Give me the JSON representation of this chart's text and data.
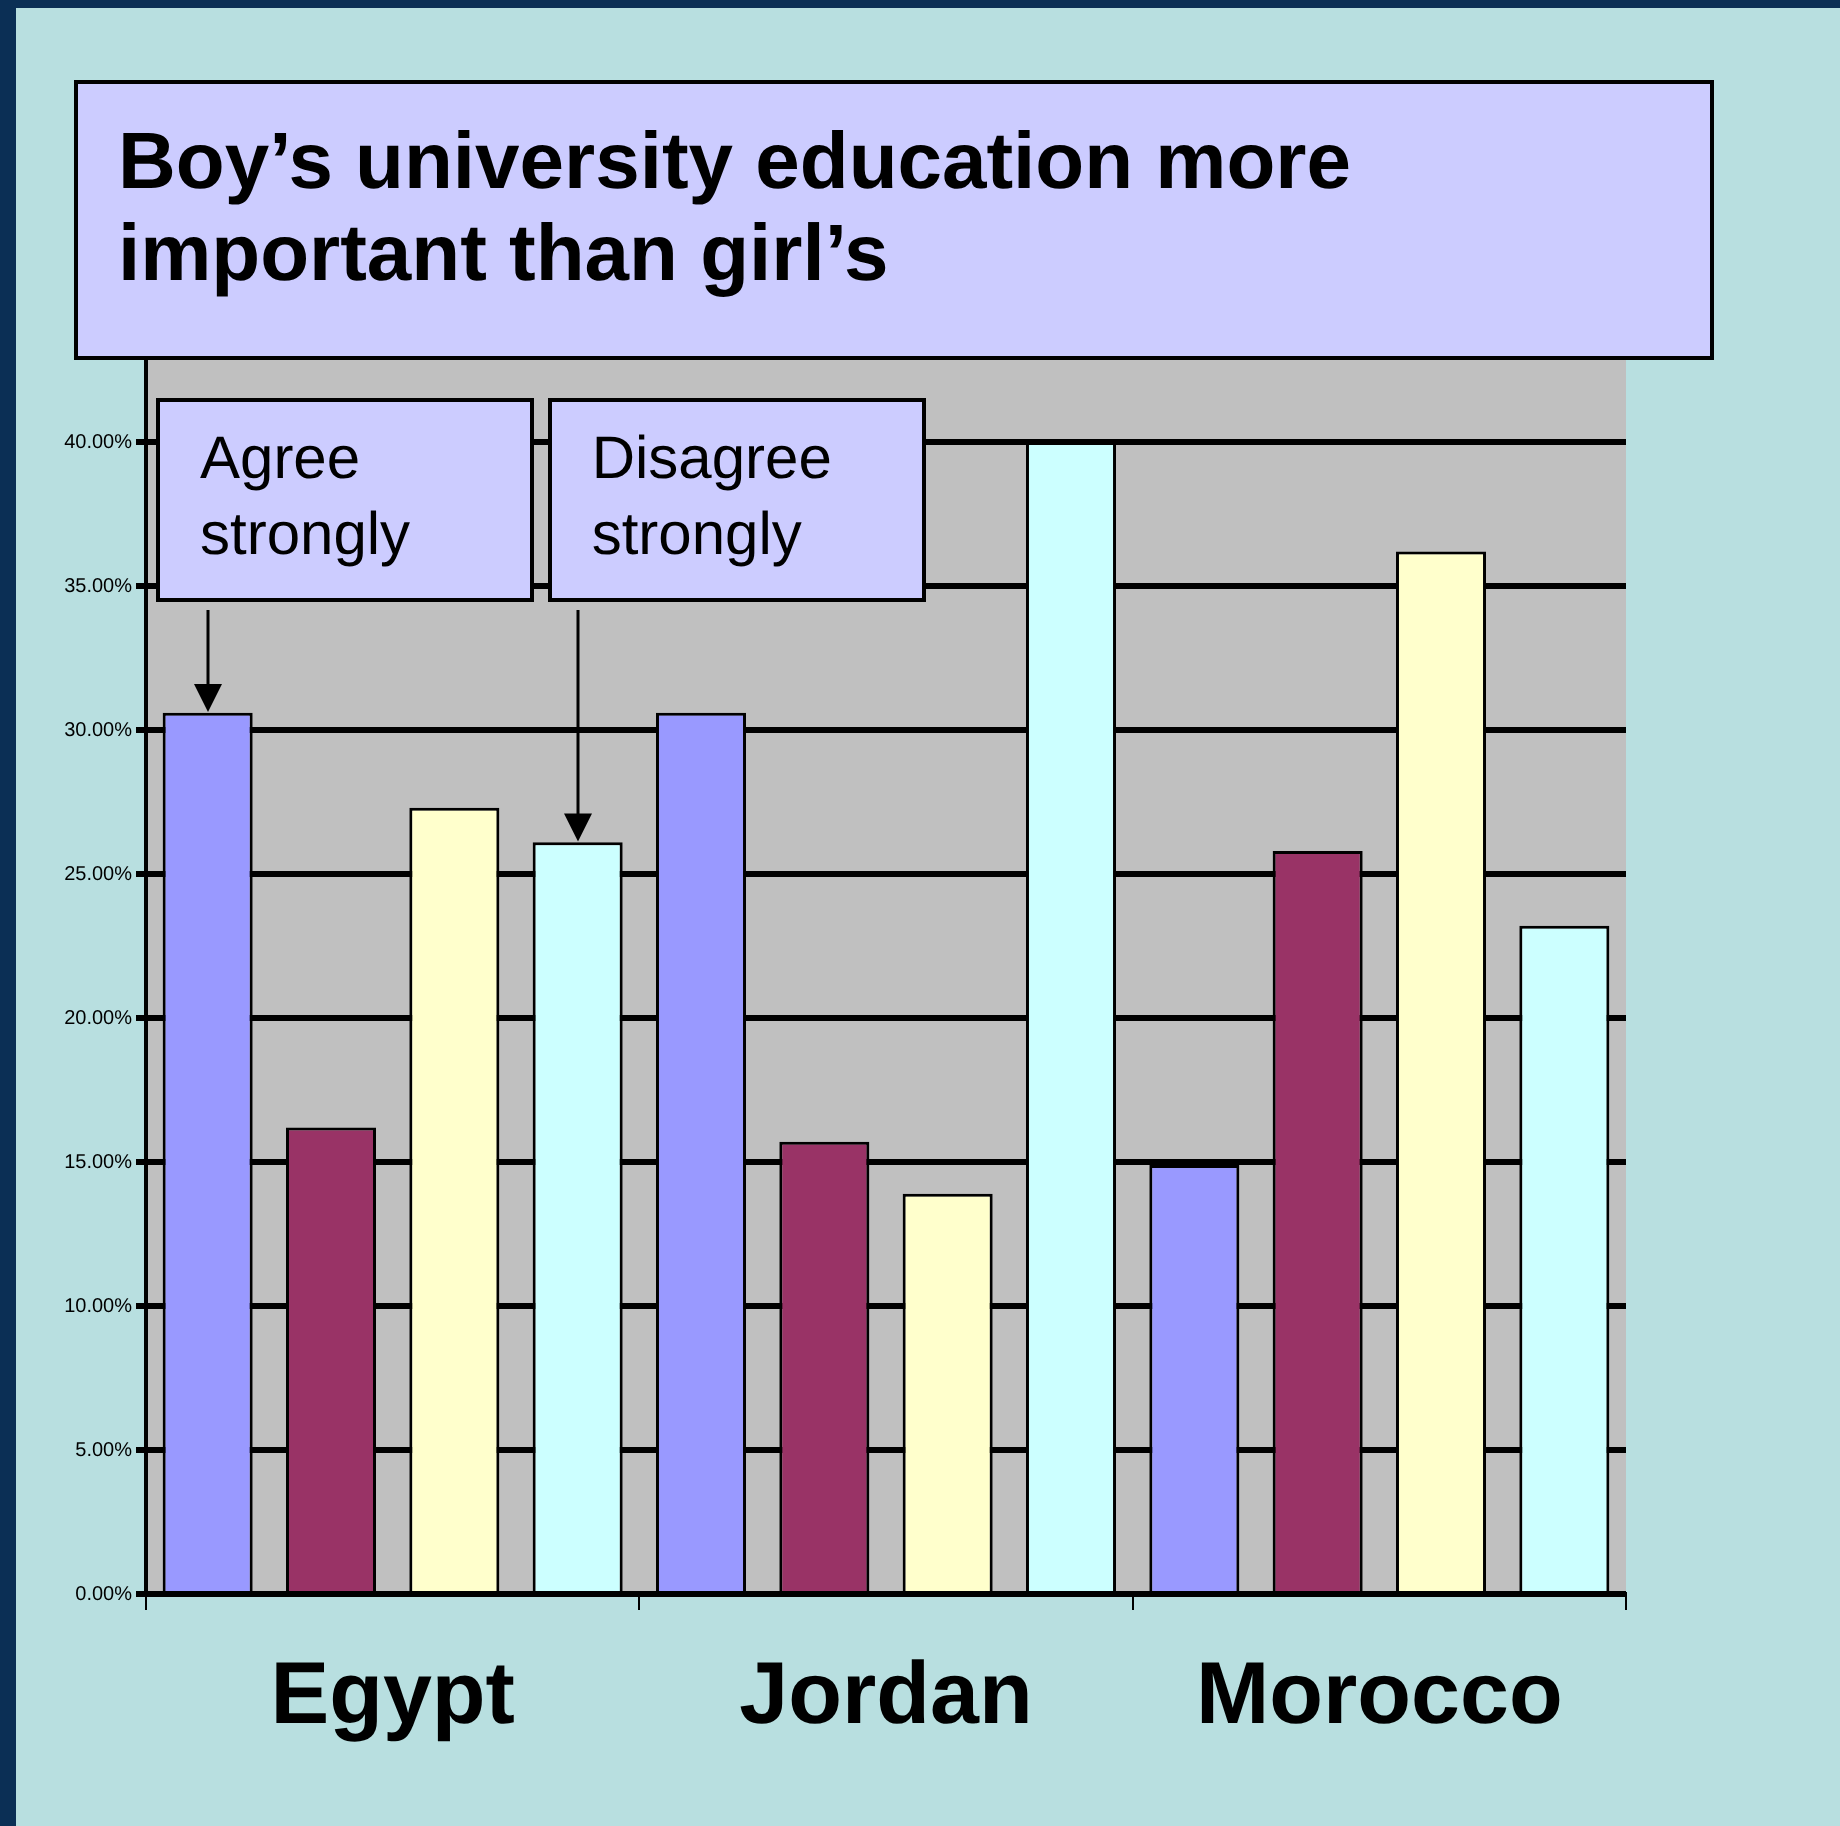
{
  "chart_data": {
    "type": "bar",
    "title": "Boy’s university education more important than girl’s",
    "categories": [
      "Egypt",
      "Jordan",
      "Morocco"
    ],
    "series": [
      {
        "color": "#9999ff",
        "values": [
          30.6,
          30.6,
          14.9
        ]
      },
      {
        "color": "#993366",
        "values": [
          16.2,
          15.7,
          25.8
        ]
      },
      {
        "color": "#ffffcc",
        "values": [
          27.3,
          13.9,
          36.2
        ]
      },
      {
        "color": "#ccffff",
        "values": [
          26.1,
          40,
          23.2
        ]
      }
    ],
    "ylim": [
      0,
      45
    ],
    "yticks": [
      {
        "value": 0,
        "label": "0.00%"
      },
      {
        "value": 5,
        "label": "5.00%"
      },
      {
        "value": 10,
        "label": "10.00%"
      },
      {
        "value": 15,
        "label": "15.00%"
      },
      {
        "value": 20,
        "label": "20.00%"
      },
      {
        "value": 25,
        "label": "25.00%"
      },
      {
        "value": 30,
        "label": "30.00%"
      },
      {
        "value": 35,
        "label": "35.00%"
      },
      {
        "value": 40,
        "label": "40.00%"
      }
    ],
    "grid": "y",
    "legend": false,
    "annotations": [
      "Agree strongly",
      "Disagree strongly"
    ]
  }
}
